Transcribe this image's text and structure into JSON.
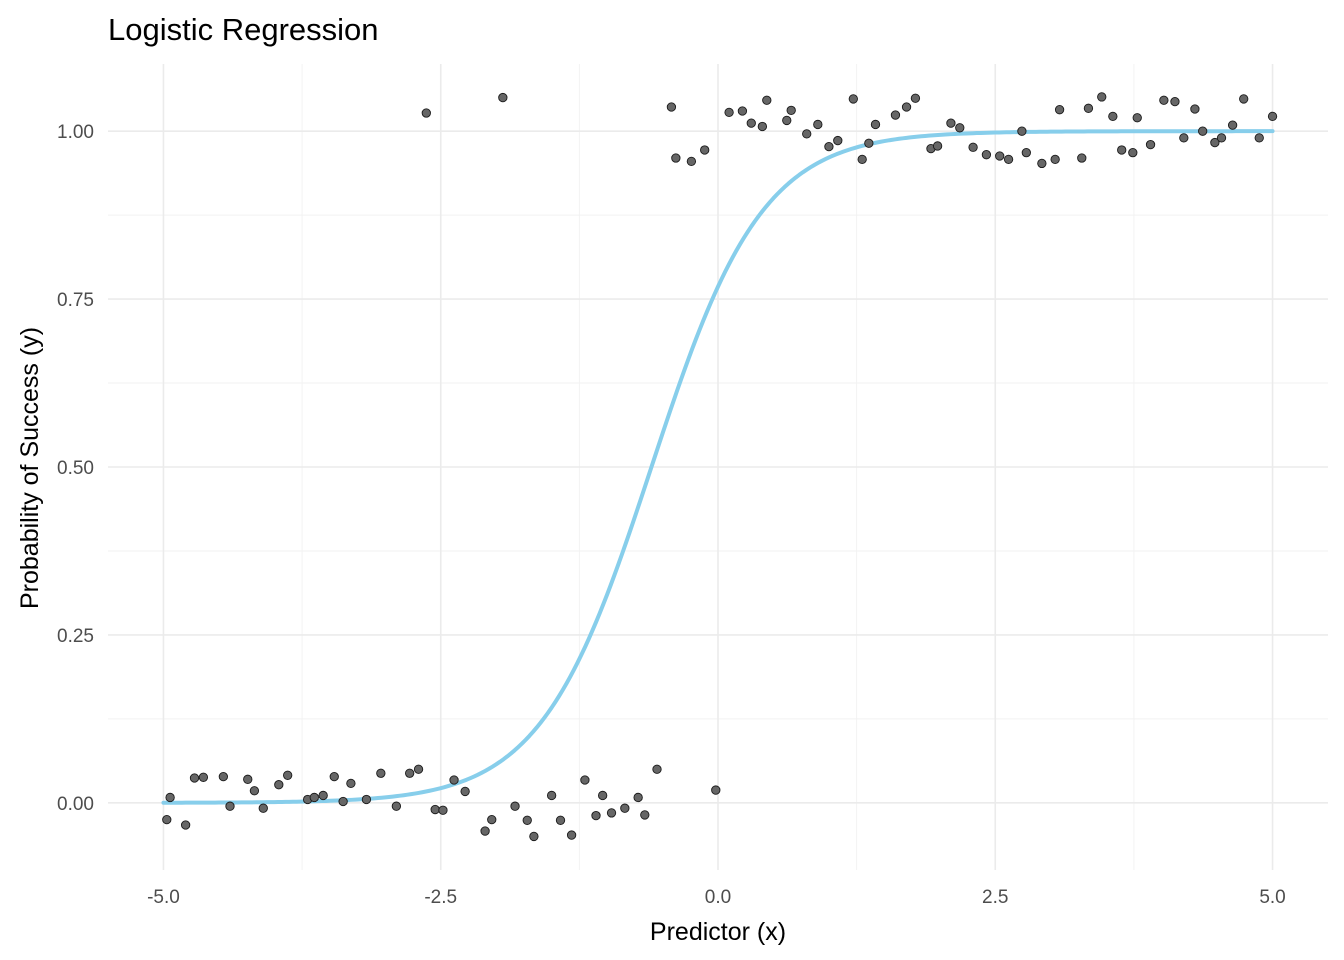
{
  "chart_data": {
    "type": "scatter",
    "title": "Logistic Regression",
    "xlabel": "Predictor (x)",
    "ylabel": "Probability of Success (y)",
    "xlim": [
      -5.5,
      5.5
    ],
    "ylim": [
      -0.1,
      1.1
    ],
    "x_ticks": [
      -5.0,
      -2.5,
      0.0,
      2.5,
      5.0
    ],
    "x_tick_labels": [
      "-5.0",
      "-2.5",
      "0.0",
      "2.5",
      "5.0"
    ],
    "y_ticks": [
      0.0,
      0.25,
      0.5,
      0.75,
      1.0
    ],
    "y_tick_labels": [
      "0.00",
      "0.25",
      "0.50",
      "0.75",
      "1.00"
    ],
    "grid": true,
    "legend": "none",
    "colors": {
      "fit_line": "#87ceeb",
      "points": "#666666"
    },
    "series": [
      {
        "type": "scatter",
        "points": [
          [
            -4.97,
            -0.025
          ],
          [
            -4.94,
            0.008
          ],
          [
            -4.8,
            -0.033
          ],
          [
            -4.72,
            0.037
          ],
          [
            -4.64,
            0.038
          ],
          [
            -4.46,
            0.039
          ],
          [
            -4.4,
            -0.005
          ],
          [
            -4.24,
            0.035
          ],
          [
            -4.18,
            0.018
          ],
          [
            -4.1,
            -0.008
          ],
          [
            -3.96,
            0.027
          ],
          [
            -3.88,
            0.041
          ],
          [
            -3.7,
            0.005
          ],
          [
            -3.64,
            0.008
          ],
          [
            -3.56,
            0.011
          ],
          [
            -3.46,
            0.039
          ],
          [
            -3.38,
            0.002
          ],
          [
            -3.31,
            0.029
          ],
          [
            -3.17,
            0.005
          ],
          [
            -3.04,
            0.044
          ],
          [
            -2.9,
            -0.005
          ],
          [
            -2.78,
            0.044
          ],
          [
            -2.7,
            0.05
          ],
          [
            -2.63,
            1.027
          ],
          [
            -2.55,
            -0.01
          ],
          [
            -2.48,
            -0.011
          ],
          [
            -2.38,
            0.034
          ],
          [
            -2.28,
            0.017
          ],
          [
            -2.1,
            -0.042
          ],
          [
            -2.04,
            -0.025
          ],
          [
            -1.94,
            1.05
          ],
          [
            -1.83,
            -0.005
          ],
          [
            -1.72,
            -0.026
          ],
          [
            -1.66,
            -0.05
          ],
          [
            -1.5,
            0.011
          ],
          [
            -1.42,
            -0.026
          ],
          [
            -1.32,
            -0.048
          ],
          [
            -1.2,
            0.034
          ],
          [
            -1.1,
            -0.019
          ],
          [
            -1.04,
            0.011
          ],
          [
            -0.96,
            -0.015
          ],
          [
            -0.84,
            -0.008
          ],
          [
            -0.72,
            0.008
          ],
          [
            -0.66,
            -0.018
          ],
          [
            -0.55,
            0.05
          ],
          [
            -0.42,
            1.036
          ],
          [
            -0.38,
            0.96
          ],
          [
            -0.24,
            0.955
          ],
          [
            -0.12,
            0.972
          ],
          [
            -0.02,
            0.019
          ],
          [
            0.1,
            1.028
          ],
          [
            0.22,
            1.03
          ],
          [
            0.3,
            1.012
          ],
          [
            0.4,
            1.007
          ],
          [
            0.44,
            1.046
          ],
          [
            0.62,
            1.016
          ],
          [
            0.66,
            1.031
          ],
          [
            0.8,
            0.996
          ],
          [
            0.9,
            1.01
          ],
          [
            1.0,
            0.977
          ],
          [
            1.08,
            0.986
          ],
          [
            1.22,
            1.048
          ],
          [
            1.3,
            0.958
          ],
          [
            1.36,
            0.982
          ],
          [
            1.42,
            1.01
          ],
          [
            1.6,
            1.024
          ],
          [
            1.7,
            1.036
          ],
          [
            1.78,
            1.049
          ],
          [
            1.92,
            0.974
          ],
          [
            1.98,
            0.978
          ],
          [
            2.1,
            1.012
          ],
          [
            2.18,
            1.005
          ],
          [
            2.3,
            0.976
          ],
          [
            2.42,
            0.965
          ],
          [
            2.54,
            0.963
          ],
          [
            2.62,
            0.958
          ],
          [
            2.74,
            1.0
          ],
          [
            2.78,
            0.968
          ],
          [
            2.92,
            0.952
          ],
          [
            3.04,
            0.958
          ],
          [
            3.08,
            1.032
          ],
          [
            3.28,
            0.96
          ],
          [
            3.34,
            1.034
          ],
          [
            3.46,
            1.051
          ],
          [
            3.56,
            1.022
          ],
          [
            3.64,
            0.972
          ],
          [
            3.74,
            0.968
          ],
          [
            3.78,
            1.02
          ],
          [
            3.9,
            0.98
          ],
          [
            4.02,
            1.046
          ],
          [
            4.12,
            1.044
          ],
          [
            4.2,
            0.99
          ],
          [
            4.3,
            1.033
          ],
          [
            4.37,
            1.0
          ],
          [
            4.48,
            0.983
          ],
          [
            4.54,
            0.99
          ],
          [
            4.64,
            1.009
          ],
          [
            4.74,
            1.048
          ],
          [
            4.88,
            0.99
          ],
          [
            5.0,
            1.022
          ]
        ]
      },
      {
        "type": "line",
        "logistic": {
          "intercept": 1.2,
          "slope": 2.0
        },
        "x_range": [
          -5.0,
          5.0
        ]
      }
    ]
  }
}
